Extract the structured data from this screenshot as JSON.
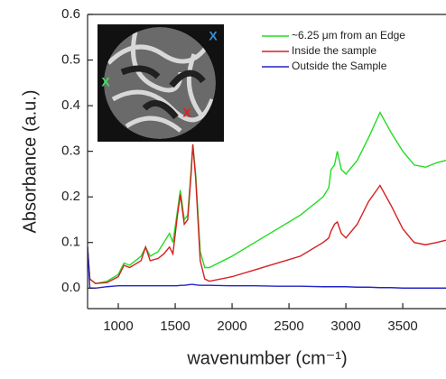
{
  "chart_data": {
    "type": "line",
    "x_label": "wavenumber (cm⁻¹)",
    "y_label": "Absorbance (a.u.)",
    "x": [
      730,
      750,
      800,
      900,
      1000,
      1050,
      1100,
      1200,
      1240,
      1280,
      1350,
      1400,
      1450,
      1480,
      1520,
      1545,
      1580,
      1610,
      1640,
      1655,
      1680,
      1720,
      1760,
      1800,
      2000,
      2200,
      2400,
      2600,
      2800,
      2850,
      2870,
      2900,
      2925,
      2960,
      3000,
      3100,
      3200,
      3300,
      3400,
      3500,
      3600,
      3700,
      3800,
      3880
    ],
    "series": [
      {
        "name": "~6.25 μm from an Edge",
        "color": "#22dd22",
        "values": [
          0.09,
          0.02,
          0.01,
          0.015,
          0.03,
          0.055,
          0.05,
          0.07,
          0.09,
          0.07,
          0.08,
          0.1,
          0.12,
          0.1,
          0.17,
          0.215,
          0.15,
          0.16,
          0.26,
          0.315,
          0.25,
          0.08,
          0.045,
          0.045,
          0.07,
          0.1,
          0.13,
          0.16,
          0.2,
          0.22,
          0.26,
          0.27,
          0.3,
          0.26,
          0.25,
          0.28,
          0.33,
          0.385,
          0.34,
          0.3,
          0.27,
          0.265,
          0.275,
          0.28
        ]
      },
      {
        "name": "Inside the sample",
        "color": "#d42020",
        "values": [
          0.09,
          0.02,
          0.01,
          0.012,
          0.025,
          0.05,
          0.045,
          0.06,
          0.09,
          0.06,
          0.065,
          0.075,
          0.09,
          0.075,
          0.16,
          0.205,
          0.14,
          0.15,
          0.25,
          0.315,
          0.24,
          0.06,
          0.02,
          0.015,
          0.025,
          0.04,
          0.055,
          0.07,
          0.1,
          0.11,
          0.125,
          0.14,
          0.145,
          0.12,
          0.11,
          0.14,
          0.19,
          0.225,
          0.18,
          0.13,
          0.1,
          0.095,
          0.1,
          0.105
        ]
      },
      {
        "name": "Outside the Sample",
        "color": "#2424c8",
        "values": [
          0.09,
          0,
          0,
          0.003,
          0.005,
          0.005,
          0.005,
          0.005,
          0.005,
          0.005,
          0.005,
          0.005,
          0.005,
          0.005,
          0.005,
          0.006,
          0.006,
          0.007,
          0.008,
          0.008,
          0.007,
          0.006,
          0.006,
          0.006,
          0.005,
          0.005,
          0.004,
          0.004,
          0.003,
          0.003,
          0.003,
          0.003,
          0.003,
          0.003,
          0.003,
          0.002,
          0.002,
          0.001,
          0.001,
          0,
          0,
          0,
          0,
          0
        ]
      }
    ],
    "xlim": [
      730,
      3880
    ],
    "ylim": [
      -0.045,
      0.6
    ],
    "xticks": [
      1000,
      1500,
      2000,
      2500,
      3000,
      3500
    ],
    "yticks": [
      {
        "value": 0,
        "label": "0.0"
      },
      0.1,
      0.2,
      0.3,
      0.4,
      0.5,
      0.6
    ],
    "legend": "upper right",
    "inset_markers": [
      {
        "label": "X",
        "color": "#3a8fd0"
      },
      {
        "label": "X",
        "color": "#4ad86a"
      },
      {
        "label": "X",
        "color": "#e02020"
      }
    ]
  }
}
